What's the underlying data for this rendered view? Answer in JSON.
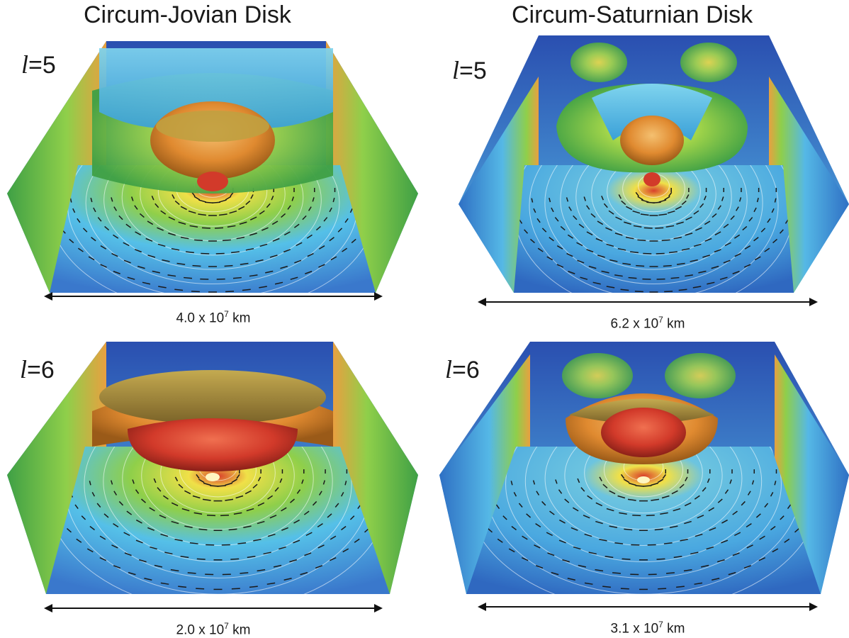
{
  "columns": [
    {
      "title": "Circum-Jovian Disk"
    },
    {
      "title": "Circum-Saturnian Disk"
    }
  ],
  "panels": [
    {
      "resolution_symbol": "l",
      "resolution_value": "=5",
      "scale_mantissa": "4.0 x 10",
      "scale_exponent": "7",
      "scale_unit": " km"
    },
    {
      "resolution_symbol": "l",
      "resolution_value": "=5",
      "scale_mantissa": "6.2 x 10",
      "scale_exponent": "7",
      "scale_unit": " km"
    },
    {
      "resolution_symbol": "l",
      "resolution_value": "=6",
      "scale_mantissa": "2.0 x 10",
      "scale_exponent": "7",
      "scale_unit": " km"
    },
    {
      "resolution_symbol": "l",
      "resolution_value": "=6",
      "scale_mantissa": "3.1 x 10",
      "scale_exponent": "7",
      "scale_unit": " km"
    }
  ],
  "colors": {
    "deep_blue": "#2a4fb0",
    "blue": "#3a8fd8",
    "cyan": "#55c0e8",
    "green": "#46b048",
    "light_green": "#8fcf4a",
    "yellow": "#ede04a",
    "orange": "#e49a3a",
    "red": "#d23a2a",
    "olive": "#a7903a",
    "arrow": "#1a1a1a"
  }
}
